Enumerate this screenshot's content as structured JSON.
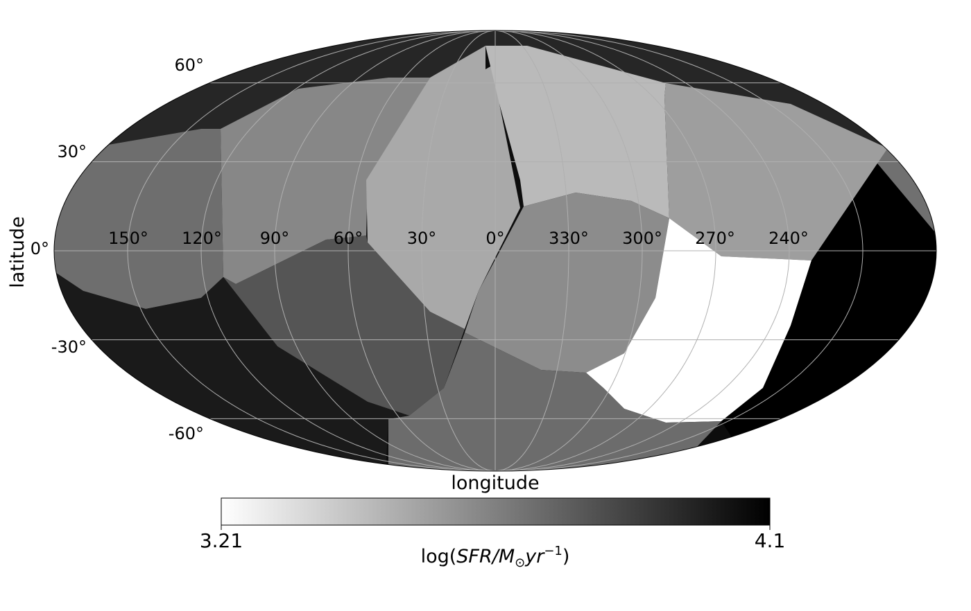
{
  "map": {
    "projection": "mollweide",
    "xlabel": "longitude",
    "ylabel": "latitude",
    "lon_tick_labels": [
      "150°",
      "120°",
      "90°",
      "60°",
      "30°",
      "0°",
      "330°",
      "300°",
      "270°",
      "240°"
    ],
    "lat_tick_labels": [
      "60°",
      "30°",
      "0°",
      "-30°",
      "-60°"
    ],
    "grid": true,
    "grid_color": "#b0b0b0",
    "colormap": "Greys",
    "colorbar": {
      "min_label": "3.21",
      "max_label": "4.1",
      "min": 3.21,
      "max": 4.1,
      "label_prefix": "log(",
      "label_italic": "SFR/M",
      "label_sub": "⊙",
      "label_italic2": "yr",
      "label_sup": "−1",
      "label_suffix": ")",
      "orientation": "horizontal",
      "placement": "bottom"
    }
  }
}
